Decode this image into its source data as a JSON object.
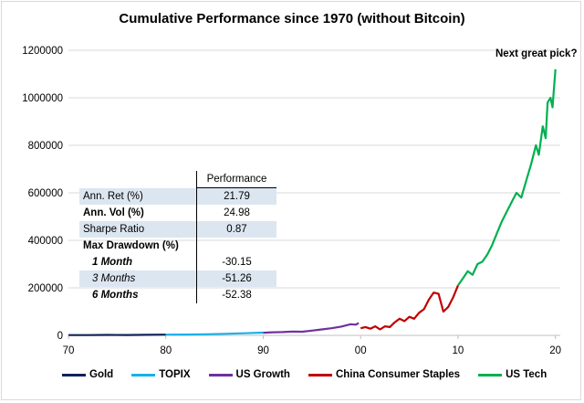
{
  "chart_data": {
    "type": "line",
    "title": "Cumulative Performance since 1970 (without Bitcoin)",
    "annotation": "Next great pick?",
    "x_ticks": [
      "70",
      "80",
      "90",
      "00",
      "10",
      "20"
    ],
    "y_ticks": [
      "0",
      "200000",
      "400000",
      "600000",
      "800000",
      "1000000",
      "1200000"
    ],
    "xlim": [
      1970,
      2020.5
    ],
    "ylim": [
      0,
      1250000
    ],
    "grid": "horizontal",
    "legend_position": "bottom",
    "series": [
      {
        "name": "Gold",
        "color": "#10225a",
        "points": [
          [
            1970,
            1000
          ],
          [
            1972,
            1200
          ],
          [
            1974,
            1800
          ],
          [
            1976,
            1500
          ],
          [
            1978,
            2200
          ],
          [
            1980,
            3000
          ]
        ]
      },
      {
        "name": "TOPIX",
        "color": "#1ab0e8",
        "points": [
          [
            1980,
            3000
          ],
          [
            1982,
            3500
          ],
          [
            1984,
            4500
          ],
          [
            1986,
            6500
          ],
          [
            1988,
            9000
          ],
          [
            1989.9,
            11500
          ],
          [
            1990,
            11000
          ]
        ]
      },
      {
        "name": "US Growth",
        "color": "#7030a0",
        "points": [
          [
            1990,
            11000
          ],
          [
            1991,
            13000
          ],
          [
            1992,
            14000
          ],
          [
            1993,
            16000
          ],
          [
            1994,
            15500
          ],
          [
            1995,
            20000
          ],
          [
            1996,
            25000
          ],
          [
            1997,
            30000
          ],
          [
            1998,
            37000
          ],
          [
            1999,
            47000
          ],
          [
            1999.5,
            45000
          ],
          [
            1999.8,
            52000
          ]
        ]
      },
      {
        "name": "China Consumer Staples",
        "color": "#c00000",
        "points": [
          [
            2000,
            30000
          ],
          [
            2000.5,
            35000
          ],
          [
            2001,
            28000
          ],
          [
            2001.5,
            38000
          ],
          [
            2002,
            25000
          ],
          [
            2002.5,
            38000
          ],
          [
            2003,
            35000
          ],
          [
            2003.5,
            55000
          ],
          [
            2004,
            70000
          ],
          [
            2004.5,
            60000
          ],
          [
            2005,
            78000
          ],
          [
            2005.5,
            70000
          ],
          [
            2006,
            95000
          ],
          [
            2006.5,
            110000
          ],
          [
            2007,
            150000
          ],
          [
            2007.5,
            180000
          ],
          [
            2008,
            175000
          ],
          [
            2008.5,
            100000
          ],
          [
            2009,
            120000
          ],
          [
            2009.5,
            160000
          ],
          [
            2010,
            210000
          ]
        ]
      },
      {
        "name": "US Tech",
        "color": "#00b050",
        "points": [
          [
            2010,
            210000
          ],
          [
            2010.5,
            240000
          ],
          [
            2011,
            270000
          ],
          [
            2011.5,
            255000
          ],
          [
            2012,
            300000
          ],
          [
            2012.5,
            310000
          ],
          [
            2013,
            340000
          ],
          [
            2013.5,
            380000
          ],
          [
            2014,
            430000
          ],
          [
            2014.5,
            480000
          ],
          [
            2015,
            520000
          ],
          [
            2015.5,
            560000
          ],
          [
            2016,
            600000
          ],
          [
            2016.5,
            580000
          ],
          [
            2017,
            650000
          ],
          [
            2017.5,
            720000
          ],
          [
            2018,
            800000
          ],
          [
            2018.3,
            760000
          ],
          [
            2018.7,
            880000
          ],
          [
            2019,
            830000
          ],
          [
            2019.2,
            980000
          ],
          [
            2019.5,
            1000000
          ],
          [
            2019.7,
            960000
          ],
          [
            2020,
            1120000
          ]
        ]
      }
    ]
  },
  "table": {
    "header": "Performance",
    "rows": [
      {
        "label": "Ann. Ret (%)",
        "value": "21.79"
      },
      {
        "label": "Ann. Vol (%)",
        "value": "24.98"
      },
      {
        "label": "Sharpe Ratio",
        "value": "0.87"
      },
      {
        "label": "Max Drawdown (%)",
        "value": ""
      },
      {
        "label": "1 Month",
        "value": "-30.15"
      },
      {
        "label": "3 Months",
        "value": "-51.26"
      },
      {
        "label": "6 Months",
        "value": "-52.38"
      }
    ]
  }
}
